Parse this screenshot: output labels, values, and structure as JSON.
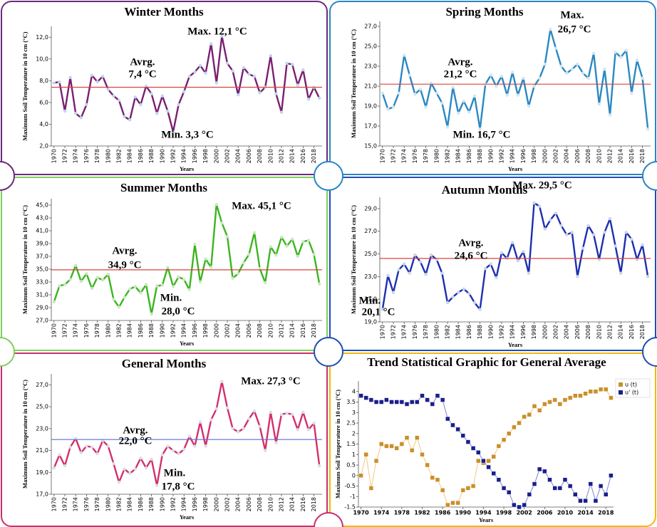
{
  "chart_data": [
    {
      "type": "line",
      "title": "Winter Months",
      "xlabel": "Years",
      "ylabel": "Maximum Soil Temperature in 10 cm (°C)",
      "color": "#7a1f72",
      "marker_color": "#bcd8ec",
      "mean": 7.4,
      "mean_color": "#d9443f",
      "annotations": [
        "Max. 12,1 °C",
        "Avrg.",
        "7,4 °C",
        "Min. 3,3 °C"
      ],
      "x": [
        1970,
        1971,
        1972,
        1973,
        1974,
        1975,
        1976,
        1977,
        1978,
        1979,
        1980,
        1981,
        1982,
        1983,
        1984,
        1985,
        1986,
        1987,
        1988,
        1989,
        1990,
        1991,
        1992,
        1993,
        1994,
        1995,
        1996,
        1997,
        1998,
        1999,
        2000,
        2001,
        2002,
        2003,
        2004,
        2005,
        2006,
        2007,
        2008,
        2009,
        2010,
        2011,
        2012,
        2013,
        2014,
        2015,
        2016,
        2017,
        2018,
        2019
      ],
      "values": [
        7.8,
        7.9,
        5.2,
        8.3,
        5.0,
        4.6,
        5.8,
        8.5,
        7.9,
        8.4,
        7.2,
        6.6,
        6.2,
        4.7,
        4.4,
        6.5,
        5.8,
        7.5,
        6.8,
        5.0,
        6.6,
        5.2,
        3.3,
        5.8,
        7.0,
        8.4,
        8.8,
        9.4,
        8.7,
        11.4,
        7.8,
        12.1,
        9.6,
        8.9,
        6.7,
        9.2,
        8.6,
        8.4,
        6.9,
        7.4,
        10.3,
        6.8,
        5.1,
        9.6,
        9.5,
        7.6,
        9.0,
        6.3,
        7.4,
        6.4
      ],
      "xlim": [
        1969.5,
        2019.5
      ],
      "xticks": [
        1970,
        1972,
        1974,
        1976,
        1978,
        1980,
        1982,
        1984,
        1986,
        1988,
        1990,
        1992,
        1994,
        1996,
        1998,
        2000,
        2002,
        2004,
        2006,
        2008,
        2010,
        2012,
        2014,
        2016,
        2018
      ],
      "ylim": [
        2,
        13
      ],
      "yticks": [
        {
          "value": 2,
          "label": "2,0"
        },
        {
          "value": 4,
          "label": "4,0"
        },
        {
          "value": 6,
          "label": "6,0"
        },
        {
          "value": 8,
          "label": "8,0"
        },
        {
          "value": 10,
          "label": "10,0"
        },
        {
          "value": 12,
          "label": "12,0"
        }
      ]
    },
    {
      "type": "line",
      "title": "Spring Months",
      "xlabel": "Years",
      "ylabel": "Maximum Soil Temperature in 10 cm (°C)",
      "color": "#2a88c2",
      "marker_color": "#d3e4ef",
      "mean": 21.2,
      "mean_color": "#d9443f",
      "annotations": [
        "Max.",
        "26,7 °C",
        "Avrg.",
        "21,2 °C",
        "Min. 16,7 °C"
      ],
      "x": [
        1970,
        1971,
        1972,
        1973,
        1974,
        1975,
        1976,
        1977,
        1978,
        1979,
        1980,
        1981,
        1982,
        1983,
        1984,
        1985,
        1986,
        1987,
        1988,
        1989,
        1990,
        1991,
        1992,
        1993,
        1994,
        1995,
        1996,
        1997,
        1998,
        1999,
        2000,
        2001,
        2002,
        2003,
        2004,
        2005,
        2006,
        2007,
        2008,
        2009,
        2010,
        2011,
        2012,
        2013,
        2014,
        2015,
        2016,
        2017,
        2018,
        2019
      ],
      "values": [
        20.3,
        18.7,
        18.9,
        20.3,
        24.1,
        22.1,
        20.2,
        20.7,
        18.9,
        21.3,
        20.3,
        19.3,
        16.9,
        20.9,
        18.3,
        19.5,
        18.4,
        20.0,
        16.7,
        21.2,
        22.1,
        21.0,
        22.0,
        20.1,
        22.4,
        20.1,
        21.8,
        19.0,
        21.0,
        21.8,
        23.2,
        26.7,
        24.8,
        23.0,
        22.3,
        22.7,
        23.2,
        22.3,
        21.8,
        24.3,
        19.2,
        22.7,
        18.1,
        24.4,
        23.9,
        24.6,
        20.3,
        23.6,
        21.8,
        16.7
      ],
      "xlim": [
        1969.5,
        2019.5
      ],
      "xticks": [
        1970,
        1972,
        1974,
        1976,
        1978,
        1980,
        1982,
        1984,
        1986,
        1988,
        1990,
        1992,
        1994,
        1996,
        1998,
        2000,
        2002,
        2004,
        2006,
        2008,
        2010,
        2012,
        2014,
        2016,
        2018
      ],
      "ylim": [
        15,
        27.5
      ],
      "yticks": [
        {
          "value": 15,
          "label": "15,0"
        },
        {
          "value": 17,
          "label": "17,0"
        },
        {
          "value": 19,
          "label": "19,0"
        },
        {
          "value": 21,
          "label": "21,0"
        },
        {
          "value": 23,
          "label": "23,0"
        },
        {
          "value": 25,
          "label": "25,0"
        },
        {
          "value": 27,
          "label": "27,0"
        }
      ]
    },
    {
      "type": "line",
      "title": "Summer Months",
      "xlabel": "Years",
      "ylabel": "Maximum Soil Temperature in 10 cm (°C)",
      "color": "#3bb51f",
      "marker_color": "#cde6c4",
      "mean": 34.9,
      "mean_color": "#d9443f",
      "annotations": [
        "Max. 45,1 °C",
        "Avrg.",
        "34,9 °C",
        "Min.",
        "28,0 °C"
      ],
      "x": [
        1970,
        1971,
        1972,
        1973,
        1974,
        1975,
        1976,
        1977,
        1978,
        1979,
        1980,
        1981,
        1982,
        1983,
        1984,
        1985,
        1986,
        1987,
        1988,
        1989,
        1990,
        1991,
        1992,
        1993,
        1994,
        1995,
        1996,
        1997,
        1998,
        1999,
        2000,
        2001,
        2002,
        2003,
        2004,
        2005,
        2006,
        2007,
        2008,
        2009,
        2010,
        2011,
        2012,
        2013,
        2014,
        2015,
        2016,
        2017,
        2018,
        2019
      ],
      "values": [
        29.9,
        32.4,
        32.6,
        33.4,
        35.6,
        33.1,
        34.3,
        32.0,
        33.7,
        33.3,
        34.2,
        30.3,
        29.1,
        30.6,
        31.9,
        32.3,
        31.3,
        32.6,
        28.0,
        32.4,
        32.5,
        35.3,
        32.3,
        33.8,
        33.4,
        31.8,
        38.9,
        33.0,
        36.6,
        35.3,
        45.1,
        42.2,
        40.1,
        33.6,
        34.3,
        36.0,
        37.3,
        40.7,
        35.1,
        32.9,
        38.5,
        37.2,
        40.0,
        38.6,
        39.7,
        37.0,
        39.3,
        39.5,
        37.3,
        32.7
      ],
      "xlim": [
        1969.5,
        2019.5
      ],
      "xticks": [
        1970,
        1972,
        1974,
        1976,
        1978,
        1980,
        1982,
        1984,
        1986,
        1988,
        1990,
        1992,
        1994,
        1996,
        1998,
        2000,
        2002,
        2004,
        2006,
        2008,
        2010,
        2012,
        2014,
        2016,
        2018
      ],
      "ylim": [
        27,
        46
      ],
      "yticks": [
        {
          "value": 27,
          "label": "27,0"
        },
        {
          "value": 29,
          "label": "29,0"
        },
        {
          "value": 31,
          "label": "31,0"
        },
        {
          "value": 33,
          "label": "33,0"
        },
        {
          "value": 35,
          "label": "35,0"
        },
        {
          "value": 37,
          "label": "37,0"
        },
        {
          "value": 39,
          "label": "39,0"
        },
        {
          "value": 41,
          "label": "41,0"
        },
        {
          "value": 43,
          "label": "43,0"
        },
        {
          "value": 45,
          "label": "45,0"
        }
      ]
    },
    {
      "type": "line",
      "title": "Autumn Months",
      "xlabel": "Years",
      "ylabel": "Maximum Soil Temperature in 10 cm (°C)",
      "color": "#1c2fb0",
      "marker_color": "#c9d4e8",
      "mean": 24.6,
      "mean_color": "#d9443f",
      "annotations": [
        "Max. 29,5 °C",
        "Avrg.",
        "24,6 °C",
        "Min.",
        "20,1 °C"
      ],
      "x": [
        1970,
        1971,
        1972,
        1973,
        1974,
        1975,
        1976,
        1977,
        1978,
        1979,
        1980,
        1981,
        1982,
        1983,
        1984,
        1985,
        1986,
        1987,
        1988,
        1989,
        1990,
        1991,
        1992,
        1993,
        1994,
        1995,
        1996,
        1997,
        1998,
        1999,
        2000,
        2001,
        2002,
        2003,
        2004,
        2005,
        2006,
        2007,
        2008,
        2009,
        2010,
        2011,
        2012,
        2013,
        2014,
        2015,
        2016,
        2017,
        2018,
        2019
      ],
      "values": [
        20.1,
        23.1,
        21.6,
        23.6,
        24.1,
        23.3,
        24.9,
        24.3,
        23.2,
        24.9,
        24.5,
        23.3,
        20.7,
        21.2,
        21.6,
        21.9,
        21.5,
        20.7,
        20.1,
        23.7,
        24.1,
        22.9,
        25.1,
        24.6,
        26.0,
        24.4,
        25.2,
        23.3,
        29.5,
        29.2,
        27.2,
        28.0,
        28.6,
        27.5,
        26.7,
        26.9,
        23.0,
        25.5,
        27.5,
        26.7,
        24.5,
        26.9,
        28.1,
        25.7,
        23.3,
        26.9,
        26.3,
        24.5,
        25.8,
        23.0
      ],
      "xlim": [
        1969.5,
        2019.5
      ],
      "xticks": [
        1970,
        1972,
        1974,
        1976,
        1978,
        1980,
        1982,
        1984,
        1986,
        1988,
        1990,
        1992,
        1994,
        1996,
        1998,
        2000,
        2002,
        2004,
        2006,
        2008,
        2010,
        2012,
        2014,
        2016,
        2018
      ],
      "ylim": [
        19,
        30
      ],
      "yticks": [
        {
          "value": 19,
          "label": "19,0"
        },
        {
          "value": 21,
          "label": "21,0"
        },
        {
          "value": 23,
          "label": "23,0"
        },
        {
          "value": 25,
          "label": "25,0"
        },
        {
          "value": 27,
          "label": "27,0"
        },
        {
          "value": 29,
          "label": "29,0"
        }
      ]
    },
    {
      "type": "line",
      "title": "General Months",
      "xlabel": "Years",
      "ylabel": "Maximum Soil Temperature in 10 cm (°C)",
      "color": "#d42f6c",
      "marker_color": "#d6dcec",
      "mean": 22.0,
      "mean_color": "#5b6fd1",
      "annotations": [
        "Max. 27,3 °C",
        "Avrg.",
        "22,0 °C",
        "Min.",
        "17,8 °C"
      ],
      "x": [
        1970,
        1971,
        1972,
        1973,
        1974,
        1975,
        1976,
        1977,
        1978,
        1979,
        1980,
        1981,
        1982,
        1983,
        1984,
        1985,
        1986,
        1987,
        1988,
        1989,
        1990,
        1991,
        1992,
        1993,
        1994,
        1995,
        1996,
        1997,
        1998,
        1999,
        2000,
        2001,
        2002,
        2003,
        2004,
        2005,
        2006,
        2007,
        2008,
        2009,
        2010,
        2011,
        2012,
        2013,
        2014,
        2015,
        2016,
        2017,
        2018,
        2019
      ],
      "values": [
        19.4,
        20.6,
        19.6,
        21.3,
        22.1,
        20.8,
        21.4,
        21.3,
        20.7,
        21.9,
        21.4,
        19.8,
        18.1,
        19.3,
        18.9,
        19.3,
        20.3,
        19.4,
        20.2,
        17.8,
        20.6,
        21.4,
        21.0,
        20.7,
        21.1,
        22.3,
        21.4,
        23.6,
        21.4,
        23.8,
        24.8,
        27.3,
        24.9,
        23.0,
        22.7,
        23.0,
        23.9,
        24.6,
        23.2,
        21.0,
        24.5,
        21.7,
        24.3,
        24.4,
        24.3,
        22.9,
        24.5,
        22.9,
        23.5,
        19.6
      ],
      "xlim": [
        1969.5,
        2019.5
      ],
      "xticks": [
        1970,
        1972,
        1974,
        1976,
        1978,
        1980,
        1982,
        1984,
        1986,
        1988,
        1990,
        1992,
        1994,
        1996,
        1998,
        2000,
        2002,
        2004,
        2006,
        2008,
        2010,
        2012,
        2014,
        2016,
        2018
      ],
      "ylim": [
        17,
        28
      ],
      "yticks": [
        {
          "value": 17,
          "label": "17,0"
        },
        {
          "value": 19,
          "label": "19,0"
        },
        {
          "value": 21,
          "label": "21,0"
        },
        {
          "value": 23,
          "label": "23,0"
        },
        {
          "value": 25,
          "label": "25,0"
        },
        {
          "value": 27,
          "label": "27,0"
        }
      ]
    },
    {
      "type": "trend",
      "title": "Trend Statistical Graphic for General Average",
      "xlabel": "Years",
      "ylabel": "Maximum Soil Temperature in 10 cm (°C)",
      "legend": "right",
      "x": [
        1970,
        1971,
        1972,
        1973,
        1974,
        1975,
        1976,
        1977,
        1978,
        1979,
        1980,
        1981,
        1982,
        1983,
        1984,
        1985,
        1986,
        1987,
        1988,
        1989,
        1990,
        1991,
        1992,
        1993,
        1994,
        1995,
        1996,
        1997,
        1998,
        1999,
        2000,
        2001,
        2002,
        2003,
        2004,
        2005,
        2006,
        2007,
        2008,
        2009,
        2010,
        2011,
        2012,
        2013,
        2014,
        2015,
        2016,
        2017,
        2018,
        2019
      ],
      "series": [
        {
          "name": "u (t)",
          "color": "#c8902a",
          "values": [
            0,
            1.0,
            -0.6,
            0.7,
            1.5,
            1.4,
            1.4,
            1.3,
            1.5,
            1.8,
            1.2,
            1.8,
            1.0,
            0.5,
            -0.1,
            -0.2,
            -0.7,
            -1.4,
            -1.3,
            -1.3,
            -0.7,
            -0.6,
            -0.5,
            0.7,
            0.6,
            0.7,
            0.9,
            1.4,
            1.7,
            2.0,
            2.3,
            2.5,
            2.8,
            2.9,
            3.3,
            3.1,
            3.4,
            3.5,
            3.6,
            3.4,
            3.6,
            3.7,
            3.8,
            3.8,
            3.9,
            4.0,
            4.0,
            4.1,
            4.1,
            3.7
          ]
        },
        {
          "name": "u' (t)",
          "color": "#1a1f8c",
          "values": [
            3.8,
            3.7,
            3.6,
            3.5,
            3.5,
            3.6,
            3.5,
            3.5,
            3.5,
            3.4,
            3.5,
            3.5,
            3.8,
            3.6,
            3.4,
            3.8,
            3.6,
            2.7,
            2.4,
            2.2,
            1.9,
            1.6,
            1.3,
            1.1,
            0.7,
            0.4,
            0.1,
            -0.2,
            -0.6,
            -0.8,
            -1.4,
            -1.5,
            -1.4,
            -0.9,
            -0.4,
            0.3,
            0.2,
            -0.2,
            -0.6,
            -0.6,
            -0.2,
            -0.5,
            -0.9,
            -1.2,
            -1.2,
            -0.4,
            -1.2,
            -0.5,
            -0.9,
            0.0
          ]
        }
      ],
      "xlim": [
        1969.5,
        2019.5
      ],
      "xticks": [
        1970,
        1974,
        1978,
        1982,
        1986,
        1990,
        1994,
        1998,
        2002,
        2006,
        2010,
        2014,
        2018
      ],
      "ylim": [
        -1.5,
        4.5
      ],
      "yticks": [
        -1.5,
        -1,
        -0.5,
        0,
        0.5,
        1,
        1.5,
        2,
        2.5,
        3,
        3.5,
        4
      ]
    }
  ]
}
